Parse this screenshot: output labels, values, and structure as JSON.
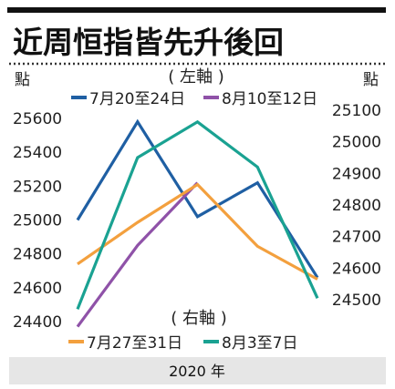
{
  "chart_data": {
    "type": "line",
    "title": "近周恒指皆先升後回",
    "xlabel": "2020 年",
    "left_axis": {
      "unit": "點",
      "caption": "( 左軸 )",
      "ticks": [
        25600,
        25400,
        25200,
        25000,
        24800,
        24600,
        24400
      ],
      "ylim": [
        24400,
        25600
      ]
    },
    "right_axis": {
      "unit": "點",
      "caption": "( 右軸 )",
      "ticks": [
        25100,
        25000,
        24900,
        24800,
        24700,
        24600,
        24500
      ],
      "ylim": [
        24500,
        25100
      ]
    },
    "x_positions": [
      1,
      2,
      3,
      4,
      5
    ],
    "series": [
      {
        "name": "7月20至24日",
        "axis": "left",
        "color": "#1f5fa3",
        "values": [
          25000,
          25580,
          25020,
          25220,
          24660
        ]
      },
      {
        "name": "8月10至12日",
        "axis": "left",
        "color": "#8f52a8",
        "values": [
          24370,
          24850,
          25220
        ]
      },
      {
        "name": "7月27至31日",
        "axis": "right",
        "color": "#f3a03e",
        "values": [
          24613,
          24745,
          24865,
          24669,
          24565
        ]
      },
      {
        "name": "8月3至7日",
        "axis": "right",
        "color": "#1aa292",
        "values": [
          24470,
          24950,
          25063,
          24920,
          24505
        ]
      }
    ]
  }
}
